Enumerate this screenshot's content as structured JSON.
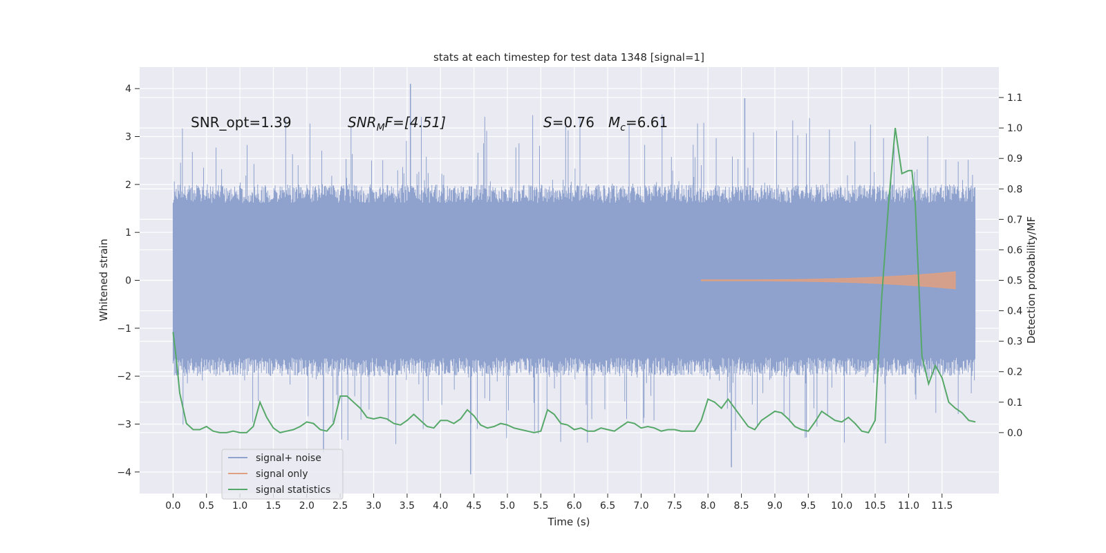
{
  "chart_data": {
    "type": "line",
    "title": "stats at each timestep for test data 1348 [signal=1]",
    "xlabel": "Time (s)",
    "ylabel_left": "Whitened strain",
    "ylabel_right": "Detection probability/MF",
    "xlim": [
      -0.5,
      12.35
    ],
    "ylim_left": [
      -4.45,
      4.45
    ],
    "ylim_right": [
      -0.2,
      1.2
    ],
    "x_ticks": [
      "0.0",
      "0.5",
      "1.0",
      "1.5",
      "2.0",
      "2.5",
      "3.0",
      "3.5",
      "4.0",
      "4.5",
      "5.0",
      "5.5",
      "6.0",
      "6.5",
      "7.0",
      "7.5",
      "8.0",
      "8.5",
      "9.0",
      "9.5",
      "10.0",
      "10.5",
      "11.0",
      "11.5"
    ],
    "x_tick_values": [
      0,
      0.5,
      1,
      1.5,
      2,
      2.5,
      3,
      3.5,
      4,
      4.5,
      5,
      5.5,
      6,
      6.5,
      7,
      7.5,
      8,
      8.5,
      9,
      9.5,
      10,
      10.5,
      11,
      11.5
    ],
    "y_left_ticks": [
      "−4",
      "−3",
      "−2",
      "−1",
      "0",
      "1",
      "2",
      "3",
      "4"
    ],
    "y_left_tick_values": [
      -4,
      -3,
      -2,
      -1,
      0,
      1,
      2,
      3,
      4
    ],
    "y_right_ticks": [
      "0.0",
      "0.1",
      "0.2",
      "0.3",
      "0.4",
      "0.5",
      "0.6",
      "0.7",
      "0.8",
      "0.9",
      "1.0",
      "1.1"
    ],
    "y_right_tick_values": [
      0,
      0.1,
      0.2,
      0.3,
      0.4,
      0.5,
      0.6,
      0.7,
      0.8,
      0.9,
      1.0,
      1.1
    ],
    "grid": true,
    "legend_position": "bottom-left",
    "annotations": {
      "snr_opt": "SNR_opt=1.39",
      "snr_mf_main": "SNR",
      "snr_mf_sub": "M",
      "snr_mf_rest": "F=[4.51]",
      "s_main": "S",
      "s_rest": "=0.76",
      "mc_main": "M",
      "mc_sub": "c",
      "mc_rest": "=6.61"
    },
    "series": [
      {
        "name": "signal+ noise",
        "color": "#8ea2cd",
        "x_range": [
          0,
          12.0
        ],
        "envelope": {
          "core_low": -1.3,
          "core_high": 1.3,
          "typical_low": -2.0,
          "typical_high": 2.0,
          "peak_low": -4.05,
          "peak_high": 4.1
        }
      },
      {
        "name": "signal only",
        "color": "#e0a080",
        "x_range": [
          7.9,
          11.7
        ],
        "envelope": {
          "start_amplitude": 0.01,
          "end_amplitude": 0.18
        }
      },
      {
        "name": "signal statistics",
        "color": "#55a868",
        "axis": "right",
        "points": [
          [
            0.0,
            0.33
          ],
          [
            0.05,
            0.24
          ],
          [
            0.1,
            0.13
          ],
          [
            0.2,
            0.03
          ],
          [
            0.3,
            0.01
          ],
          [
            0.4,
            0.01
          ],
          [
            0.5,
            0.02
          ],
          [
            0.6,
            0.005
          ],
          [
            0.7,
            0.0
          ],
          [
            0.8,
            0.0
          ],
          [
            0.9,
            0.005
          ],
          [
            1.0,
            0.0
          ],
          [
            1.1,
            0.0
          ],
          [
            1.2,
            0.02
          ],
          [
            1.3,
            0.1
          ],
          [
            1.4,
            0.05
          ],
          [
            1.5,
            0.015
          ],
          [
            1.6,
            0.0
          ],
          [
            1.7,
            0.005
          ],
          [
            1.8,
            0.01
          ],
          [
            1.9,
            0.02
          ],
          [
            2.0,
            0.035
          ],
          [
            2.1,
            0.03
          ],
          [
            2.2,
            0.01
          ],
          [
            2.3,
            0.005
          ],
          [
            2.4,
            0.03
          ],
          [
            2.5,
            0.12
          ],
          [
            2.6,
            0.12
          ],
          [
            2.7,
            0.1
          ],
          [
            2.8,
            0.08
          ],
          [
            2.9,
            0.05
          ],
          [
            3.0,
            0.045
          ],
          [
            3.1,
            0.05
          ],
          [
            3.2,
            0.045
          ],
          [
            3.3,
            0.03
          ],
          [
            3.4,
            0.025
          ],
          [
            3.5,
            0.04
          ],
          [
            3.6,
            0.06
          ],
          [
            3.7,
            0.04
          ],
          [
            3.8,
            0.02
          ],
          [
            3.9,
            0.015
          ],
          [
            4.0,
            0.04
          ],
          [
            4.1,
            0.04
          ],
          [
            4.2,
            0.03
          ],
          [
            4.3,
            0.045
          ],
          [
            4.4,
            0.075
          ],
          [
            4.5,
            0.055
          ],
          [
            4.6,
            0.025
          ],
          [
            4.7,
            0.015
          ],
          [
            4.8,
            0.02
          ],
          [
            4.9,
            0.03
          ],
          [
            5.0,
            0.025
          ],
          [
            5.1,
            0.015
          ],
          [
            5.2,
            0.01
          ],
          [
            5.3,
            0.005
          ],
          [
            5.4,
            0.0
          ],
          [
            5.5,
            0.005
          ],
          [
            5.6,
            0.075
          ],
          [
            5.7,
            0.06
          ],
          [
            5.8,
            0.03
          ],
          [
            5.9,
            0.025
          ],
          [
            6.0,
            0.01
          ],
          [
            6.1,
            0.015
          ],
          [
            6.2,
            0.005
          ],
          [
            6.3,
            0.005
          ],
          [
            6.4,
            0.015
          ],
          [
            6.5,
            0.01
          ],
          [
            6.6,
            0.005
          ],
          [
            6.7,
            0.02
          ],
          [
            6.8,
            0.035
          ],
          [
            6.9,
            0.03
          ],
          [
            7.0,
            0.015
          ],
          [
            7.1,
            0.02
          ],
          [
            7.2,
            0.015
          ],
          [
            7.3,
            0.005
          ],
          [
            7.4,
            0.01
          ],
          [
            7.5,
            0.01
          ],
          [
            7.6,
            0.005
          ],
          [
            7.7,
            0.005
          ],
          [
            7.8,
            0.005
          ],
          [
            7.9,
            0.04
          ],
          [
            8.0,
            0.11
          ],
          [
            8.1,
            0.1
          ],
          [
            8.2,
            0.08
          ],
          [
            8.3,
            0.11
          ],
          [
            8.4,
            0.08
          ],
          [
            8.5,
            0.05
          ],
          [
            8.6,
            0.02
          ],
          [
            8.7,
            0.01
          ],
          [
            8.8,
            0.04
          ],
          [
            8.9,
            0.055
          ],
          [
            9.0,
            0.07
          ],
          [
            9.1,
            0.065
          ],
          [
            9.2,
            0.045
          ],
          [
            9.3,
            0.02
          ],
          [
            9.4,
            0.01
          ],
          [
            9.5,
            0.005
          ],
          [
            9.6,
            0.035
          ],
          [
            9.7,
            0.07
          ],
          [
            9.8,
            0.055
          ],
          [
            9.9,
            0.04
          ],
          [
            10.0,
            0.035
          ],
          [
            10.1,
            0.05
          ],
          [
            10.2,
            0.03
          ],
          [
            10.3,
            0.005
          ],
          [
            10.4,
            0.0
          ],
          [
            10.5,
            0.04
          ],
          [
            10.6,
            0.45
          ],
          [
            10.7,
            0.75
          ],
          [
            10.8,
            1.0
          ],
          [
            10.9,
            0.85
          ],
          [
            11.0,
            0.86
          ],
          [
            11.05,
            0.86
          ],
          [
            11.1,
            0.75
          ],
          [
            11.2,
            0.25
          ],
          [
            11.3,
            0.16
          ],
          [
            11.4,
            0.22
          ],
          [
            11.5,
            0.18
          ],
          [
            11.6,
            0.1
          ],
          [
            11.7,
            0.08
          ],
          [
            11.8,
            0.065
          ],
          [
            11.9,
            0.04
          ],
          [
            12.0,
            0.035
          ]
        ]
      }
    ]
  }
}
